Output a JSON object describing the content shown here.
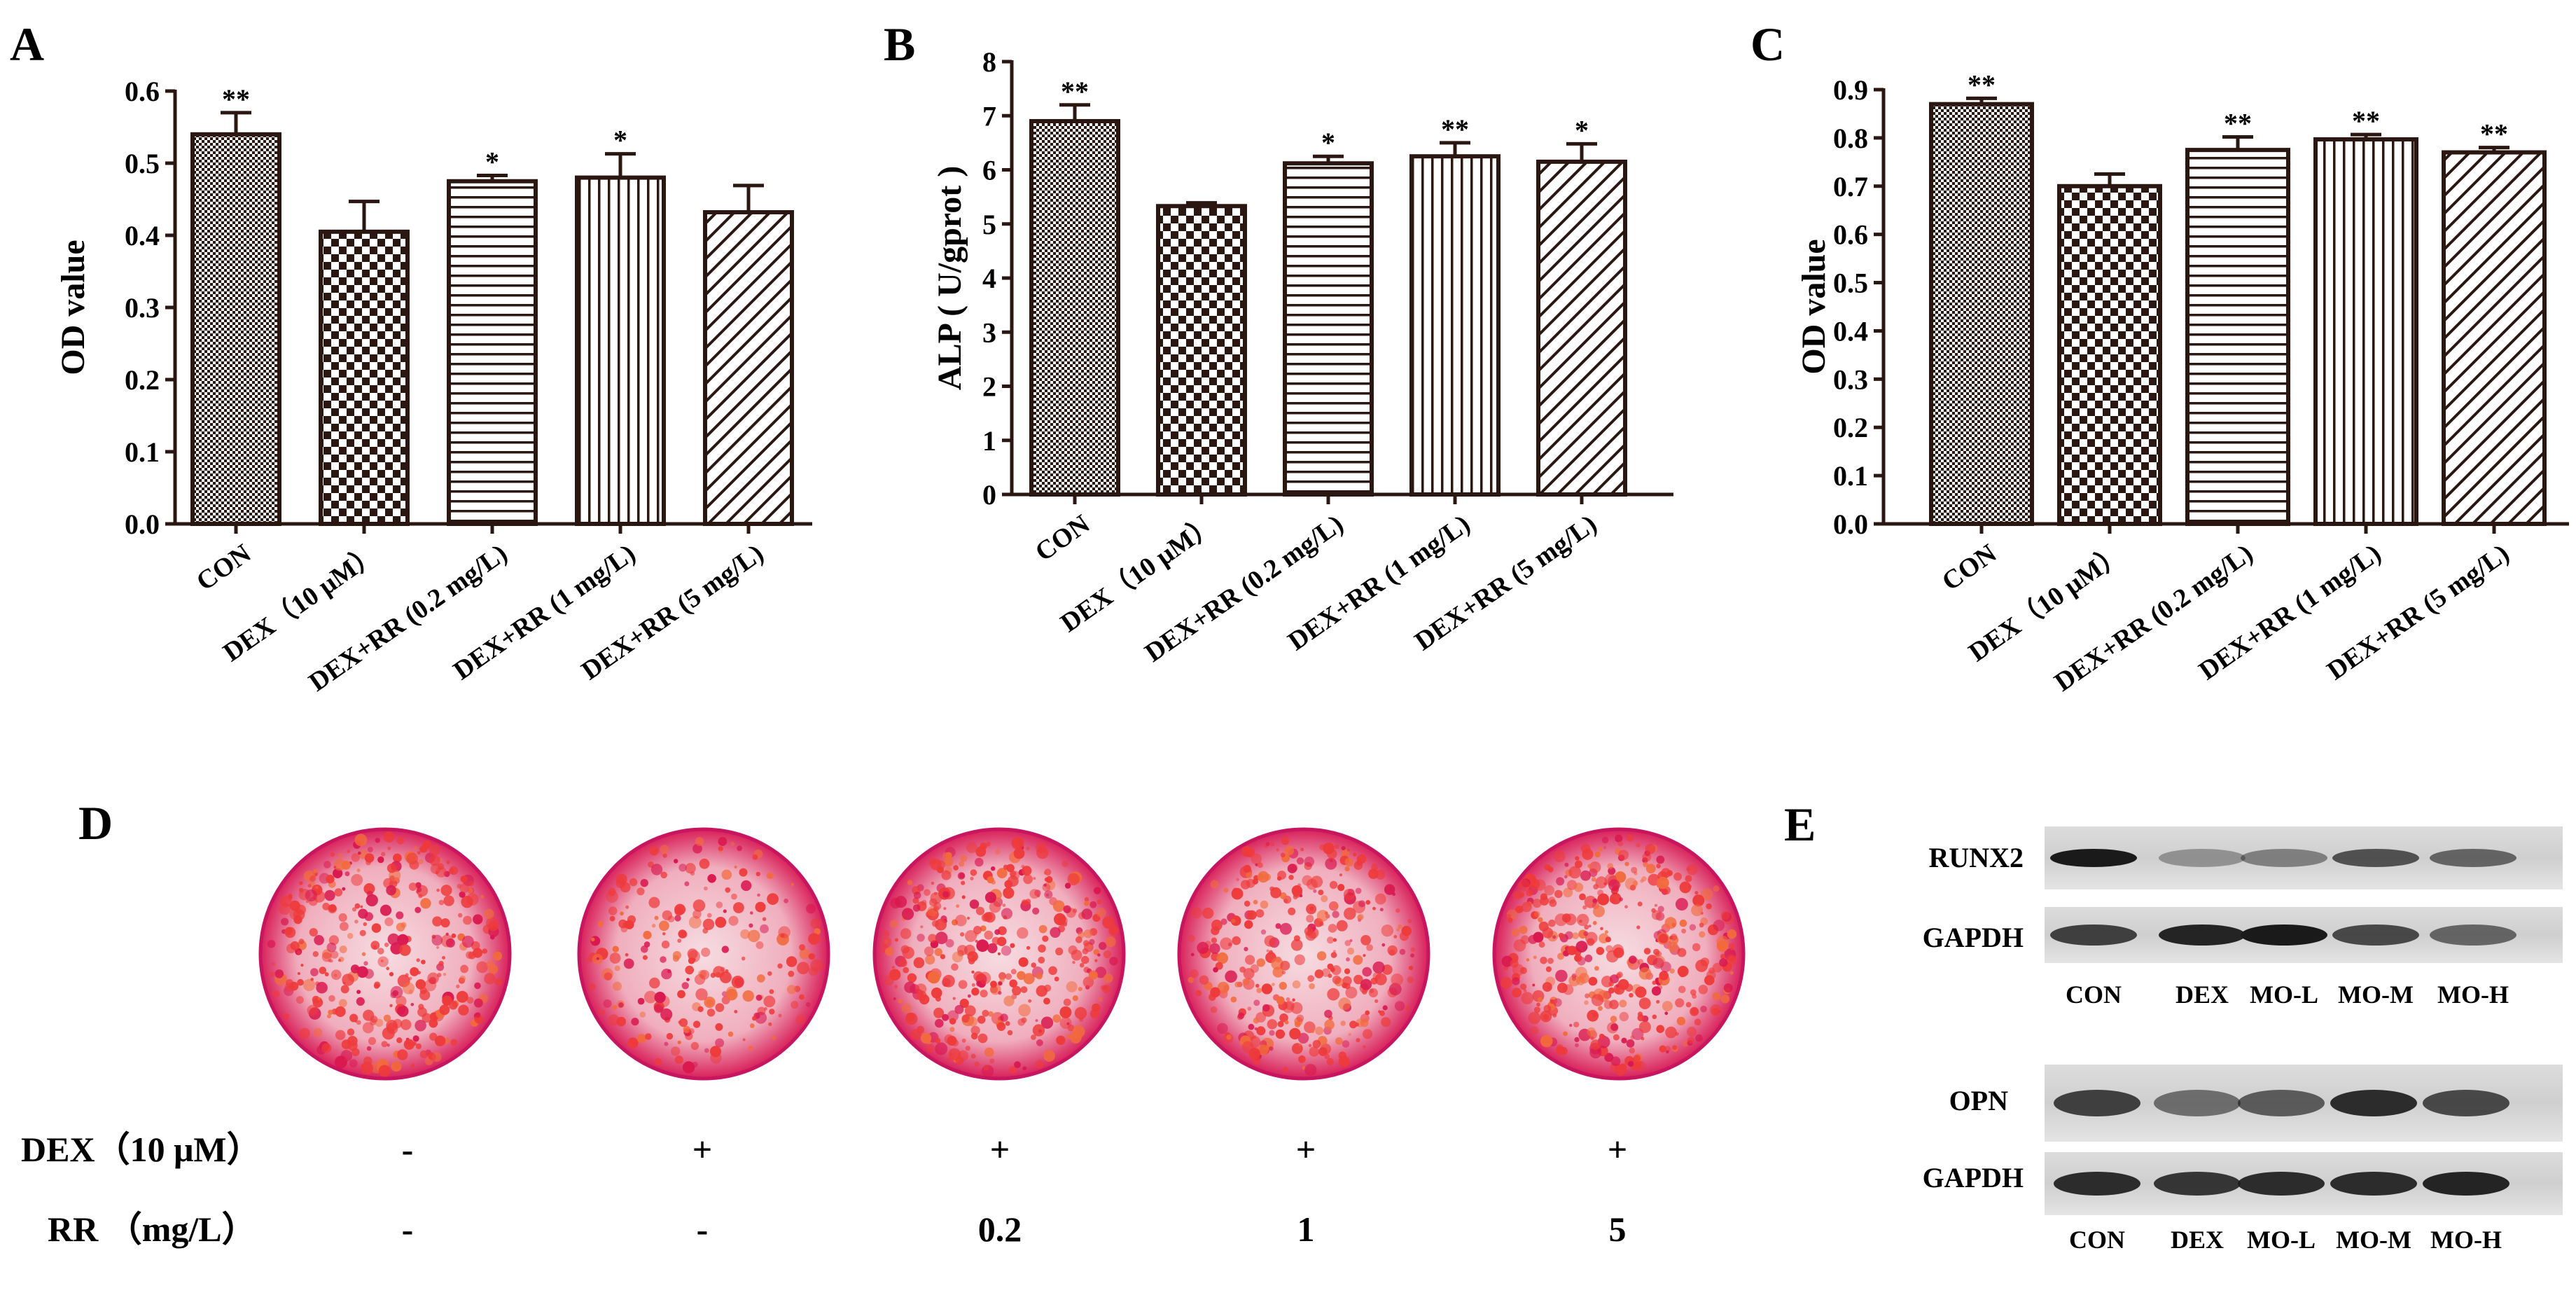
{
  "panels": {
    "A": "A",
    "B": "B",
    "C": "C",
    "D": "D",
    "E": "E"
  },
  "chart_data": [
    {
      "type": "bar",
      "panel": "A",
      "ylabel": "OD value",
      "ylim": [
        0,
        0.6
      ],
      "yticks": [
        "0.0",
        "0.1",
        "0.2",
        "0.3",
        "0.4",
        "0.5",
        "0.6"
      ],
      "categories": [
        "CON",
        "DEX（10 μM）",
        "DEX+RR (0.2 mg/L)",
        "DEX+RR (1 mg/L)",
        "DEX+RR (5 mg/L)"
      ],
      "values": [
        0.54,
        0.405,
        0.475,
        0.48,
        0.432
      ],
      "errors": [
        0.03,
        0.042,
        0.008,
        0.033,
        0.037
      ],
      "significance": [
        "**",
        "",
        "*",
        "*",
        ""
      ]
    },
    {
      "type": "bar",
      "panel": "B",
      "ylabel": "ALP ( U/gprot )",
      "ylim": [
        0,
        8
      ],
      "yticks": [
        "0",
        "1",
        "2",
        "3",
        "4",
        "5",
        "6",
        "7",
        "8"
      ],
      "categories": [
        "CON",
        "DEX（10 μM）",
        "DEX+RR (0.2 mg/L)",
        "DEX+RR (1 mg/L)",
        "DEX+RR (5 mg/L)"
      ],
      "values": [
        6.9,
        5.33,
        6.12,
        6.25,
        6.15
      ],
      "errors": [
        0.3,
        0.06,
        0.13,
        0.25,
        0.33
      ],
      "significance": [
        "**",
        "",
        "*",
        "**",
        "*"
      ]
    },
    {
      "type": "bar",
      "panel": "C",
      "ylabel": "OD value",
      "ylim": [
        0,
        0.9
      ],
      "yticks": [
        "0.0",
        "0.1",
        "0.2",
        "0.3",
        "0.4",
        "0.5",
        "0.6",
        "0.7",
        "0.8",
        "0.9"
      ],
      "categories": [
        "CON",
        "DEX（10 μM）",
        "DEX+RR (0.2 mg/L)",
        "DEX+RR (1 mg/L)",
        "DEX+RR (5 mg/L)"
      ],
      "values": [
        0.87,
        0.7,
        0.775,
        0.797,
        0.77
      ],
      "errors": [
        0.012,
        0.025,
        0.027,
        0.01,
        0.01
      ],
      "significance": [
        "**",
        "",
        "**",
        "**",
        "**"
      ]
    }
  ],
  "panel_d": {
    "rows": [
      {
        "label": "DEX（10 μM）",
        "values": [
          "-",
          "+",
          "+",
          "+",
          "+"
        ]
      },
      {
        "label": "RR （mg/L）",
        "values": [
          "-",
          "-",
          "0.2",
          "1",
          "5"
        ]
      }
    ]
  },
  "panel_e": {
    "top_labels": [
      "RUNX2",
      "GAPDH"
    ],
    "bottom_labels": [
      "OPN",
      "GAPDH"
    ],
    "lanes": [
      "CON",
      "DEX",
      "MO-L",
      "MO-M",
      "MO-H"
    ]
  },
  "colors": {
    "bar_stroke": "#2b1712",
    "stain": "#e8294a",
    "stain_light": "#f2b9c6",
    "blot": "#1a1a1a"
  }
}
